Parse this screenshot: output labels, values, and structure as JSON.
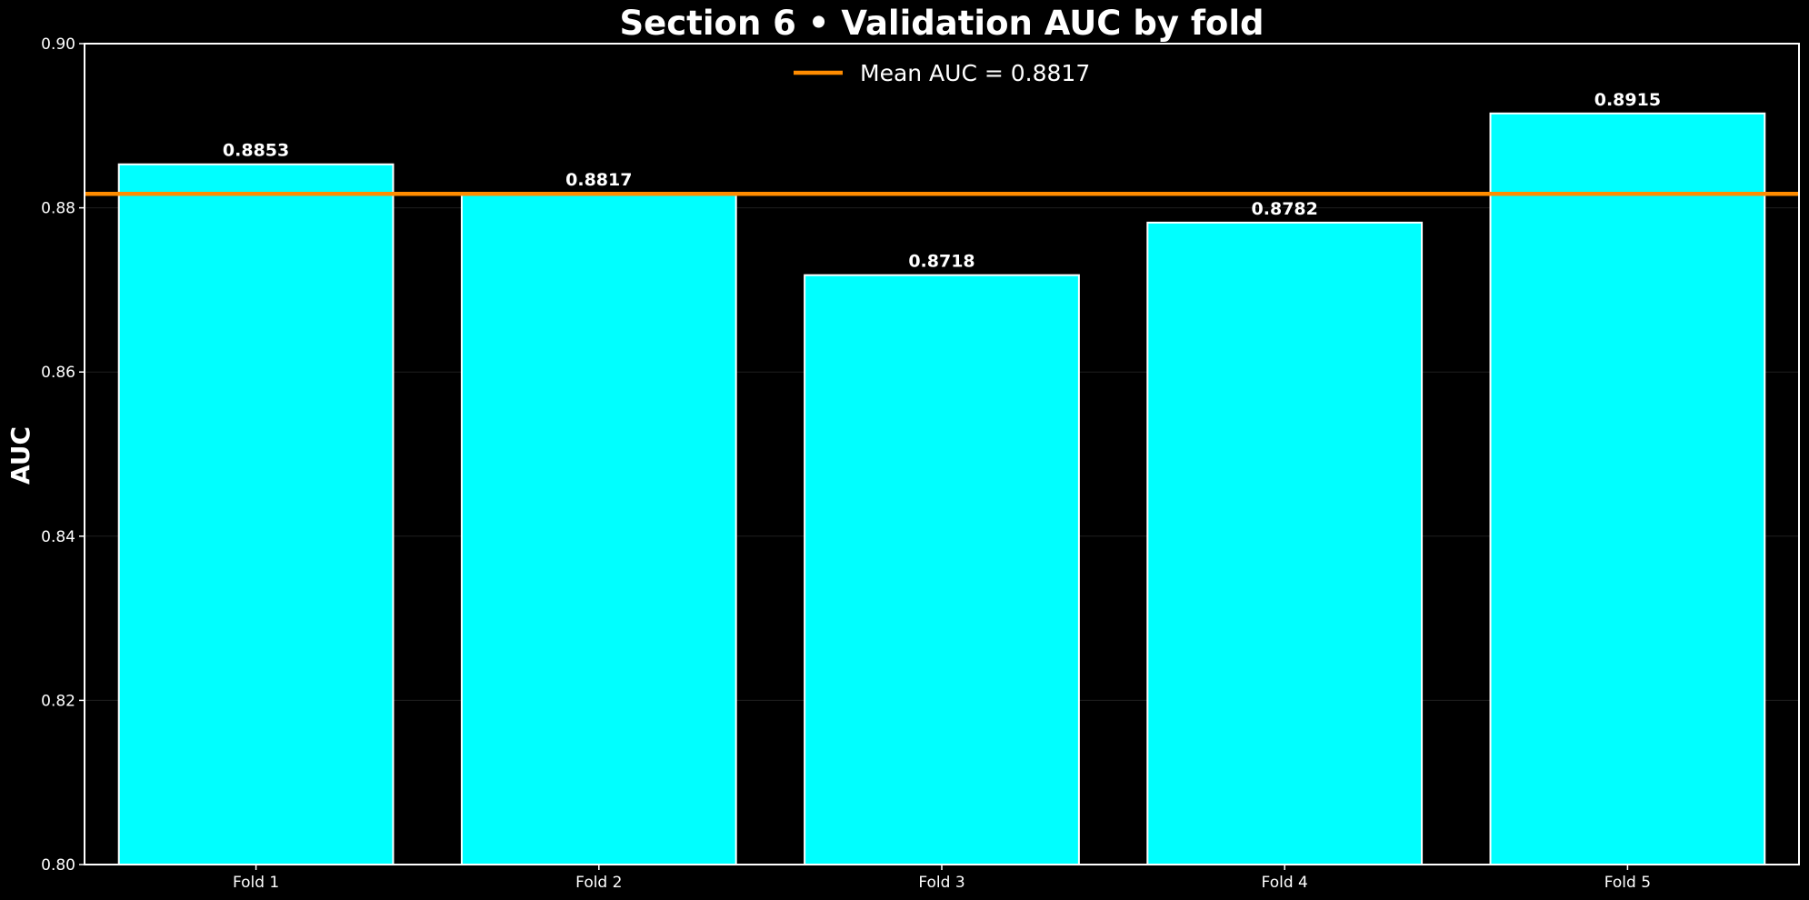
{
  "chart_data": {
    "type": "bar",
    "title": "Section 6 • Validation AUC by fold",
    "xlabel": "",
    "ylabel": "AUC",
    "categories": [
      "Fold 1",
      "Fold 2",
      "Fold 3",
      "Fold 4",
      "Fold 5"
    ],
    "values": [
      0.8853,
      0.8817,
      0.8718,
      0.8782,
      0.8915
    ],
    "value_labels": [
      "0.8853",
      "0.8817",
      "0.8718",
      "0.8782",
      "0.8915"
    ],
    "ylim": [
      0.8,
      0.9
    ],
    "yticks": [
      "0.80",
      "0.82",
      "0.84",
      "0.86",
      "0.88",
      "0.90"
    ],
    "ytick_values": [
      0.8,
      0.82,
      0.84,
      0.86,
      0.88,
      0.9
    ],
    "mean_line": {
      "value": 0.8817,
      "label": "Mean AUC = 0.8817",
      "color": "#ff8c00"
    },
    "legend_position": "upper-center",
    "grid": "horizontal-faint",
    "colors": {
      "bar_fill": "#00ffff",
      "bar_edge": "#ffffff",
      "background": "#000000",
      "axes": "#ffffff",
      "grid": "#1f1f1f"
    }
  }
}
